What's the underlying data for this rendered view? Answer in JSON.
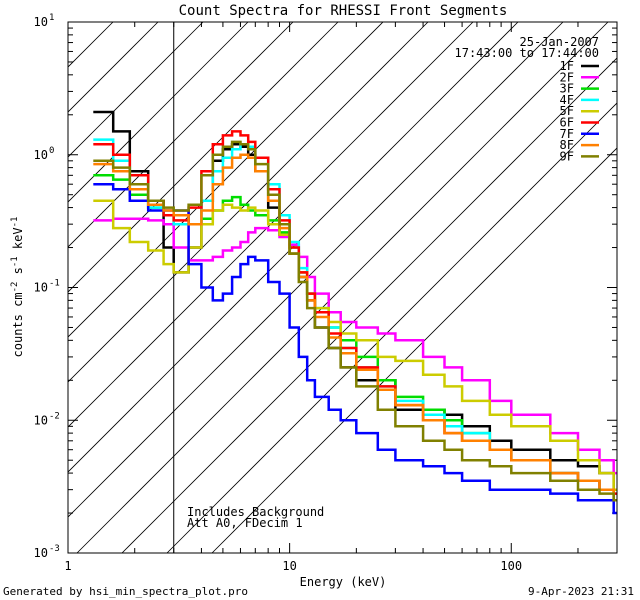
{
  "chart_data": {
    "type": "line",
    "title": "Count Spectra for RHESSI Front Segments",
    "xlabel": "Energy (keV)",
    "ylabel_parts": [
      "counts cm",
      "-2",
      " s",
      "-1",
      " keV",
      "-1"
    ],
    "xscale": "log",
    "yscale": "log",
    "xlim": [
      1,
      300
    ],
    "ylim": [
      0.001,
      10
    ],
    "x_tick_labels": [
      {
        "value": 1,
        "label": "1"
      },
      {
        "value": 10,
        "label": "10"
      },
      {
        "value": 100,
        "label": "100"
      }
    ],
    "y_tick_labels": [
      {
        "value": 0.001,
        "mant": "10",
        "exp": "-3"
      },
      {
        "value": 0.01,
        "mant": "10",
        "exp": "-2"
      },
      {
        "value": 0.1,
        "mant": "10",
        "exp": "-1"
      },
      {
        "value": 1,
        "mant": "10",
        "exp": "0"
      },
      {
        "value": 10,
        "mant": "10",
        "exp": "1"
      }
    ],
    "hatched_region": {
      "x_from": 1,
      "x_to": 3
    },
    "date": "25-Jan-2007",
    "time_range": "17:43:00 to 17:44:00",
    "annotations": [
      "Includes Background",
      "Att A0, FDecim 1"
    ],
    "footer_left": "Generated by hsi_min_spectra_plot.pro",
    "footer_right": "9-Apr-2023 21:31",
    "series": [
      {
        "name": "1F",
        "color": "#000000",
        "x": [
          1.3,
          1.6,
          1.9,
          2.3,
          2.7,
          3,
          3.5,
          4,
          4.5,
          5,
          5.5,
          6,
          6.5,
          7,
          8,
          9,
          10,
          11,
          12,
          13,
          15,
          17,
          20,
          25,
          30,
          40,
          50,
          60,
          80,
          100,
          150,
          200,
          250,
          290
        ],
        "y": [
          2.1,
          1.5,
          0.75,
          0.45,
          0.2,
          0.13,
          0.2,
          0.45,
          0.9,
          1.1,
          1.2,
          1.15,
          1.0,
          0.75,
          0.4,
          0.25,
          0.18,
          0.12,
          0.08,
          0.05,
          0.035,
          0.025,
          0.02,
          0.02,
          0.012,
          0.012,
          0.011,
          0.009,
          0.007,
          0.006,
          0.005,
          0.0045,
          0.004,
          0.003
        ]
      },
      {
        "name": "2F",
        "color": "#ff00ff",
        "x": [
          1.3,
          1.6,
          1.9,
          2.3,
          2.7,
          3,
          3.5,
          4,
          4.5,
          5,
          5.5,
          6,
          6.5,
          7,
          8,
          9,
          10,
          11,
          12,
          13,
          15,
          17,
          20,
          25,
          30,
          40,
          50,
          60,
          80,
          100,
          150,
          200,
          250,
          290
        ],
        "y": [
          0.32,
          0.33,
          0.33,
          0.32,
          0.3,
          0.2,
          0.16,
          0.16,
          0.17,
          0.19,
          0.2,
          0.22,
          0.26,
          0.28,
          0.27,
          0.24,
          0.21,
          0.17,
          0.12,
          0.09,
          0.065,
          0.055,
          0.05,
          0.045,
          0.04,
          0.03,
          0.025,
          0.02,
          0.014,
          0.011,
          0.008,
          0.006,
          0.005,
          0.004
        ]
      },
      {
        "name": "3F",
        "color": "#00dd00",
        "x": [
          1.3,
          1.6,
          1.9,
          2.3,
          2.7,
          3,
          3.5,
          4,
          4.5,
          5,
          5.5,
          6,
          6.5,
          7,
          8,
          9,
          10,
          11,
          12,
          13,
          15,
          17,
          20,
          25,
          30,
          40,
          50,
          60,
          80,
          100,
          150,
          200,
          250,
          290
        ],
        "y": [
          0.7,
          0.65,
          0.5,
          0.4,
          0.35,
          0.3,
          0.3,
          0.33,
          0.38,
          0.45,
          0.48,
          0.42,
          0.38,
          0.35,
          0.32,
          0.26,
          0.2,
          0.13,
          0.09,
          0.065,
          0.05,
          0.04,
          0.03,
          0.02,
          0.015,
          0.012,
          0.01,
          0.008,
          0.006,
          0.005,
          0.004,
          0.0035,
          0.003,
          0.0025
        ]
      },
      {
        "name": "4F",
        "color": "#00ffff",
        "x": [
          1.3,
          1.6,
          1.9,
          2.3,
          2.7,
          3,
          3.5,
          4,
          4.5,
          5,
          5.5,
          6,
          6.5,
          7,
          8,
          9,
          10,
          11,
          12,
          13,
          15,
          17,
          20,
          25,
          30,
          40,
          50,
          60,
          80,
          100,
          150,
          200,
          250,
          290
        ],
        "y": [
          1.3,
          0.9,
          0.55,
          0.4,
          0.35,
          0.3,
          0.3,
          0.45,
          0.75,
          0.95,
          1.1,
          1.2,
          1.15,
          0.95,
          0.6,
          0.35,
          0.22,
          0.14,
          0.09,
          0.07,
          0.05,
          0.035,
          0.025,
          0.018,
          0.014,
          0.011,
          0.009,
          0.008,
          0.006,
          0.005,
          0.004,
          0.0035,
          0.003,
          0.0028
        ]
      },
      {
        "name": "5F",
        "color": "#cccc00",
        "x": [
          1.3,
          1.6,
          1.9,
          2.3,
          2.7,
          3,
          3.5,
          4,
          4.5,
          5,
          5.5,
          6,
          6.5,
          7,
          8,
          9,
          10,
          11,
          12,
          13,
          15,
          17,
          20,
          25,
          30,
          40,
          50,
          60,
          80,
          100,
          150,
          200,
          250,
          290
        ],
        "y": [
          0.45,
          0.28,
          0.22,
          0.19,
          0.15,
          0.13,
          0.2,
          0.3,
          0.38,
          0.42,
          0.4,
          0.38,
          0.4,
          0.38,
          0.3,
          0.25,
          0.18,
          0.13,
          0.09,
          0.07,
          0.055,
          0.045,
          0.04,
          0.03,
          0.028,
          0.022,
          0.018,
          0.014,
          0.011,
          0.009,
          0.007,
          0.005,
          0.004,
          0.003
        ]
      },
      {
        "name": "6F",
        "color": "#ff0000",
        "x": [
          1.3,
          1.6,
          1.9,
          2.3,
          2.7,
          3,
          3.5,
          4,
          4.5,
          5,
          5.5,
          6,
          6.5,
          7,
          8,
          9,
          10,
          11,
          12,
          13,
          15,
          17,
          20,
          25,
          30,
          40,
          50,
          60,
          80,
          100,
          150,
          200,
          250,
          290
        ],
        "y": [
          1.2,
          1.0,
          0.7,
          0.45,
          0.35,
          0.32,
          0.4,
          0.75,
          1.2,
          1.4,
          1.5,
          1.4,
          1.25,
          0.95,
          0.55,
          0.32,
          0.2,
          0.13,
          0.09,
          0.065,
          0.045,
          0.035,
          0.025,
          0.018,
          0.013,
          0.01,
          0.008,
          0.007,
          0.006,
          0.005,
          0.004,
          0.0035,
          0.003,
          0.0028
        ]
      },
      {
        "name": "7F",
        "color": "#0000ff",
        "x": [
          1.3,
          1.6,
          1.9,
          2.3,
          2.7,
          3,
          3.5,
          4,
          4.5,
          5,
          5.5,
          6,
          6.5,
          7,
          8,
          9,
          10,
          11,
          12,
          13,
          15,
          17,
          20,
          25,
          30,
          40,
          50,
          60,
          80,
          100,
          150,
          200,
          250,
          290
        ],
        "y": [
          0.6,
          0.55,
          0.45,
          0.38,
          0.38,
          0.38,
          0.15,
          0.1,
          0.08,
          0.09,
          0.12,
          0.15,
          0.17,
          0.16,
          0.11,
          0.09,
          0.05,
          0.03,
          0.02,
          0.015,
          0.012,
          0.01,
          0.008,
          0.006,
          0.005,
          0.0045,
          0.004,
          0.0035,
          0.003,
          0.003,
          0.0028,
          0.0025,
          0.0025,
          0.002
        ]
      },
      {
        "name": "8F",
        "color": "#ff8000",
        "x": [
          1.3,
          1.6,
          1.9,
          2.3,
          2.7,
          3,
          3.5,
          4,
          4.5,
          5,
          5.5,
          6,
          6.5,
          7,
          8,
          9,
          10,
          11,
          12,
          13,
          15,
          17,
          20,
          25,
          30,
          40,
          50,
          60,
          80,
          100,
          150,
          200,
          250,
          290
        ],
        "y": [
          0.85,
          0.75,
          0.55,
          0.42,
          0.38,
          0.35,
          0.3,
          0.38,
          0.6,
          0.8,
          0.95,
          1.0,
          0.95,
          0.75,
          0.45,
          0.28,
          0.18,
          0.12,
          0.08,
          0.06,
          0.042,
          0.032,
          0.024,
          0.017,
          0.013,
          0.01,
          0.008,
          0.007,
          0.006,
          0.005,
          0.004,
          0.0035,
          0.003,
          0.0025
        ]
      },
      {
        "name": "9F",
        "color": "#808000",
        "x": [
          1.3,
          1.6,
          1.9,
          2.3,
          2.7,
          3,
          3.5,
          4,
          4.5,
          5,
          5.5,
          6,
          6.5,
          7,
          8,
          9,
          10,
          11,
          12,
          13,
          15,
          17,
          20,
          25,
          30,
          40,
          50,
          60,
          80,
          100,
          150,
          200,
          250,
          290
        ],
        "y": [
          0.9,
          0.8,
          0.6,
          0.45,
          0.4,
          0.38,
          0.42,
          0.7,
          1.0,
          1.15,
          1.25,
          1.2,
          1.1,
          0.85,
          0.5,
          0.3,
          0.18,
          0.11,
          0.07,
          0.05,
          0.035,
          0.025,
          0.018,
          0.012,
          0.009,
          0.007,
          0.006,
          0.005,
          0.0045,
          0.004,
          0.0035,
          0.003,
          0.0028,
          0.0025
        ]
      }
    ]
  }
}
